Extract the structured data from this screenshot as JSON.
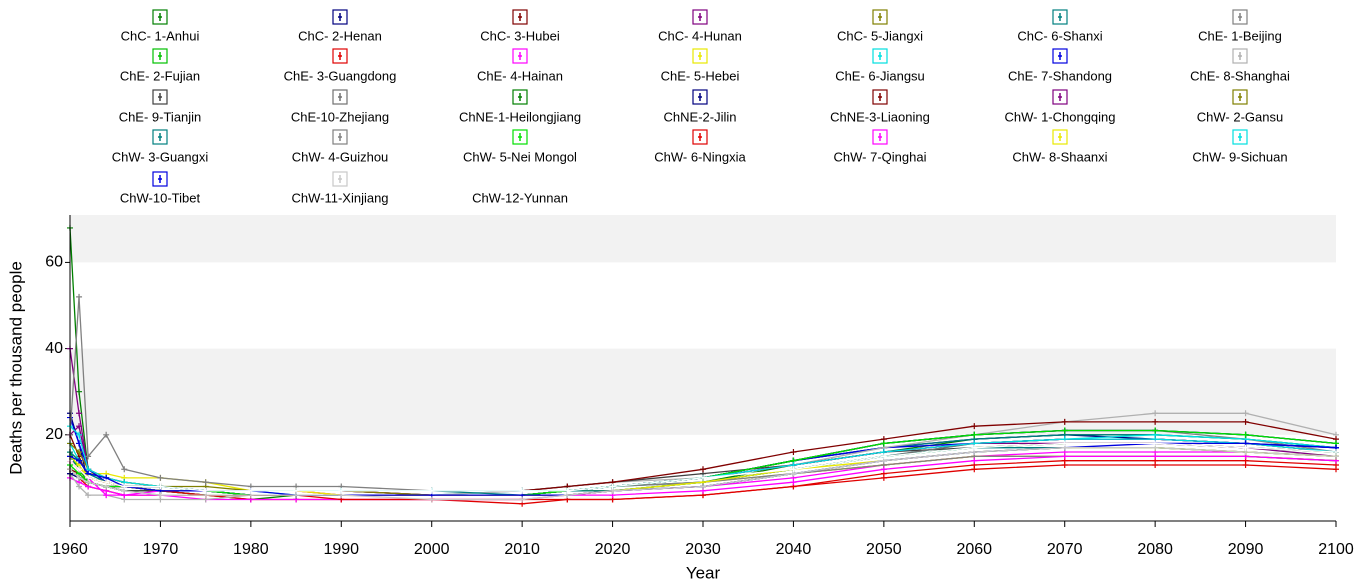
{
  "chart_data": {
    "type": "line",
    "x_label": "Year",
    "y_label": "Deaths per thousand people",
    "x": [
      1960,
      1961,
      1962,
      1964,
      1966,
      1970,
      1975,
      1980,
      1985,
      1990,
      2000,
      2010,
      2015,
      2020,
      2030,
      2040,
      2050,
      2060,
      2070,
      2080,
      2090,
      2100
    ],
    "xlim": [
      1960,
      2100
    ],
    "xticks": [
      1960,
      1970,
      1980,
      1990,
      2000,
      2010,
      2020,
      2030,
      2040,
      2050,
      2060,
      2070,
      2080,
      2090,
      2100
    ],
    "ylim": [
      0,
      71
    ],
    "yticks": [
      20,
      40,
      60
    ],
    "grid": true,
    "legend": "top",
    "series": [
      {
        "name": "ChC- 1-Anhui",
        "color": "#008000",
        "values": [
          68,
          30,
          12,
          9,
          8,
          7,
          6,
          5,
          6,
          6,
          6,
          6,
          7,
          7,
          9,
          13,
          16,
          19,
          20,
          20,
          19,
          17
        ]
      },
      {
        "name": "ChC- 2-Henan",
        "color": "#000080",
        "values": [
          25,
          18,
          9,
          8,
          7,
          7,
          6,
          6,
          6,
          6,
          6,
          6,
          7,
          8,
          10,
          14,
          17,
          19,
          20,
          19,
          18,
          17
        ]
      },
      {
        "name": "ChC- 3-Hubei",
        "color": "#800000",
        "values": [
          20,
          15,
          10,
          9,
          8,
          8,
          7,
          7,
          7,
          7,
          6,
          6,
          7,
          8,
          10,
          13,
          16,
          18,
          19,
          19,
          18,
          16
        ]
      },
      {
        "name": "ChC- 4-Hunan",
        "color": "#800080",
        "values": [
          40,
          25,
          12,
          9,
          8,
          7,
          7,
          6,
          6,
          6,
          6,
          6,
          7,
          8,
          10,
          13,
          16,
          18,
          19,
          19,
          18,
          16
        ]
      },
      {
        "name": "ChC- 5-Jiangxi",
        "color": "#808000",
        "values": [
          16,
          14,
          11,
          10,
          9,
          8,
          7,
          7,
          7,
          6,
          6,
          6,
          6,
          7,
          8,
          11,
          13,
          15,
          15,
          15,
          15,
          14
        ]
      },
      {
        "name": "ChC- 6-Shanxi",
        "color": "#008080",
        "values": [
          15,
          12,
          10,
          9,
          8,
          7,
          7,
          6,
          6,
          6,
          6,
          6,
          7,
          8,
          10,
          14,
          17,
          19,
          20,
          20,
          19,
          17
        ]
      },
      {
        "name": "ChE- 1-Beijing",
        "color": "#808080",
        "values": [
          12,
          10,
          9,
          8,
          7,
          6,
          6,
          6,
          6,
          6,
          6,
          6,
          7,
          8,
          10,
          14,
          18,
          20,
          21,
          21,
          19,
          16
        ]
      },
      {
        "name": "ChE- 2-Fujian",
        "color": "#00c000",
        "values": [
          16,
          12,
          9,
          8,
          7,
          7,
          6,
          6,
          6,
          6,
          6,
          6,
          7,
          7,
          9,
          12,
          15,
          17,
          18,
          18,
          17,
          16
        ]
      },
      {
        "name": "ChE- 3-Guangdong",
        "color": "#e00000",
        "values": [
          12,
          10,
          8,
          7,
          6,
          6,
          6,
          5,
          5,
          5,
          5,
          4,
          5,
          5,
          6,
          8,
          10,
          12,
          13,
          13,
          13,
          12
        ]
      },
      {
        "name": "ChE- 4-Hainan",
        "color": "#ff00ff",
        "values": [
          10,
          9,
          8,
          7,
          6,
          6,
          5,
          5,
          5,
          5,
          5,
          5,
          6,
          7,
          8,
          10,
          13,
          15,
          16,
          16,
          16,
          15
        ]
      },
      {
        "name": "ChE- 5-Hebei",
        "color": "#e8e800",
        "values": [
          14,
          12,
          11,
          11,
          10,
          10,
          9,
          7,
          7,
          6,
          6,
          6,
          7,
          7,
          9,
          11,
          13,
          15,
          15,
          15,
          15,
          14
        ]
      },
      {
        "name": "ChE- 6-Jiangsu",
        "color": "#00e0e0",
        "values": [
          18,
          14,
          11,
          9,
          8,
          7,
          7,
          7,
          6,
          6,
          6,
          7,
          7,
          8,
          9,
          12,
          15,
          18,
          19,
          20,
          19,
          17
        ]
      },
      {
        "name": "ChE- 7-Shandong",
        "color": "#0000e0",
        "values": [
          24,
          18,
          12,
          9,
          8,
          7,
          7,
          6,
          6,
          6,
          6,
          6,
          7,
          8,
          10,
          14,
          17,
          18,
          19,
          19,
          18,
          17
        ]
      },
      {
        "name": "ChE- 8-Shanghai",
        "color": "#b0b0b0",
        "values": [
          11,
          8,
          6,
          6,
          5,
          5,
          5,
          6,
          6,
          6,
          6,
          7,
          8,
          9,
          10,
          13,
          17,
          20,
          23,
          25,
          25,
          20
        ]
      },
      {
        "name": "ChE- 9-Tianjin",
        "color": "#404040",
        "values": [
          11,
          10,
          9,
          8,
          7,
          7,
          7,
          7,
          7,
          7,
          7,
          7,
          8,
          9,
          11,
          13,
          16,
          17,
          18,
          18,
          17,
          16
        ]
      },
      {
        "name": "ChE-10-Zhejiang",
        "color": "#707070",
        "values": [
          14,
          12,
          10,
          9,
          8,
          8,
          7,
          7,
          7,
          7,
          6,
          6,
          7,
          8,
          9,
          12,
          15,
          18,
          19,
          19,
          18,
          16
        ]
      },
      {
        "name": "ChNE-1-Heilongjiang",
        "color": "#008000",
        "values": [
          12,
          10,
          9,
          8,
          8,
          7,
          7,
          6,
          6,
          6,
          6,
          6,
          7,
          8,
          10,
          14,
          18,
          20,
          21,
          21,
          20,
          18
        ]
      },
      {
        "name": "ChNE-2-Jilin",
        "color": "#000080",
        "values": [
          11,
          10,
          9,
          8,
          8,
          7,
          7,
          6,
          6,
          6,
          6,
          6,
          7,
          8,
          10,
          14,
          18,
          20,
          21,
          21,
          20,
          18
        ]
      },
      {
        "name": "ChNE-3-Liaoning",
        "color": "#800000",
        "values": [
          12,
          11,
          9,
          8,
          8,
          7,
          7,
          7,
          7,
          7,
          7,
          7,
          8,
          9,
          12,
          16,
          19,
          22,
          23,
          23,
          23,
          19
        ]
      },
      {
        "name": "ChW- 1-Chongqing",
        "color": "#800080",
        "values": [
          20,
          22,
          12,
          10,
          9,
          8,
          7,
          7,
          7,
          7,
          6,
          6,
          7,
          8,
          10,
          13,
          16,
          18,
          18,
          18,
          17,
          15
        ]
      },
      {
        "name": "ChW- 2-Gansu",
        "color": "#808000",
        "values": [
          18,
          16,
          12,
          10,
          9,
          8,
          8,
          7,
          7,
          7,
          6,
          6,
          6,
          7,
          8,
          11,
          14,
          16,
          17,
          17,
          16,
          15
        ]
      },
      {
        "name": "ChW- 3-Guangxi",
        "color": "#008080",
        "values": [
          16,
          14,
          11,
          9,
          8,
          8,
          7,
          7,
          7,
          7,
          7,
          6,
          7,
          7,
          9,
          12,
          15,
          17,
          17,
          17,
          16,
          15
        ]
      },
      {
        "name": "ChW- 4-Guizhou",
        "color": "#808080",
        "values": [
          20,
          52,
          15,
          20,
          12,
          10,
          9,
          8,
          8,
          8,
          7,
          7,
          7,
          8,
          9,
          11,
          13,
          15,
          15,
          15,
          15,
          14
        ]
      },
      {
        "name": "ChW- 5-Nei Mongol",
        "color": "#00e000",
        "values": [
          13,
          11,
          9,
          8,
          8,
          7,
          7,
          6,
          6,
          6,
          6,
          6,
          7,
          8,
          10,
          14,
          18,
          20,
          21,
          21,
          20,
          18
        ]
      },
      {
        "name": "ChW- 6-Ningxia",
        "color": "#e00000",
        "values": [
          14,
          12,
          10,
          9,
          8,
          7,
          6,
          6,
          6,
          5,
          5,
          5,
          5,
          5,
          6,
          8,
          11,
          13,
          14,
          14,
          14,
          13
        ]
      },
      {
        "name": "ChW- 7-Qinghai",
        "color": "#ff00ff",
        "values": [
          14,
          12,
          10,
          6,
          6,
          7,
          7,
          7,
          7,
          6,
          6,
          6,
          6,
          6,
          7,
          9,
          12,
          14,
          15,
          15,
          15,
          14
        ]
      },
      {
        "name": "ChW- 8-Shaanxi",
        "color": "#e8e800",
        "values": [
          15,
          13,
          10,
          9,
          8,
          7,
          7,
          7,
          7,
          6,
          6,
          6,
          6,
          7,
          9,
          12,
          14,
          16,
          17,
          17,
          16,
          15
        ]
      },
      {
        "name": "ChW- 9-Sichuan",
        "color": "#00e0e0",
        "values": [
          22,
          20,
          12,
          10,
          9,
          8,
          7,
          7,
          7,
          7,
          7,
          7,
          7,
          8,
          10,
          13,
          16,
          18,
          19,
          19,
          18,
          16
        ]
      },
      {
        "name": "ChW-10-Tibet",
        "color": "#0000e0",
        "values": [
          15,
          14,
          11,
          10,
          8,
          7,
          7,
          7,
          6,
          6,
          6,
          6,
          6,
          7,
          8,
          11,
          14,
          16,
          17,
          18,
          18,
          17
        ]
      },
      {
        "name": "ChW-11-Xinjiang",
        "color": "#c8c8c8",
        "values": [
          12,
          10,
          9,
          8,
          7,
          6,
          6,
          6,
          6,
          6,
          5,
          5,
          6,
          7,
          8,
          11,
          14,
          16,
          17,
          17,
          16,
          15
        ]
      },
      {
        "name": "ChW-12-Yunnan",
        "color": "#ffffff",
        "values": [
          14,
          12,
          10,
          9,
          8,
          8,
          7,
          7,
          7,
          7,
          7,
          7,
          7,
          8,
          10,
          12,
          15,
          17,
          18,
          18,
          17,
          16
        ]
      }
    ]
  }
}
